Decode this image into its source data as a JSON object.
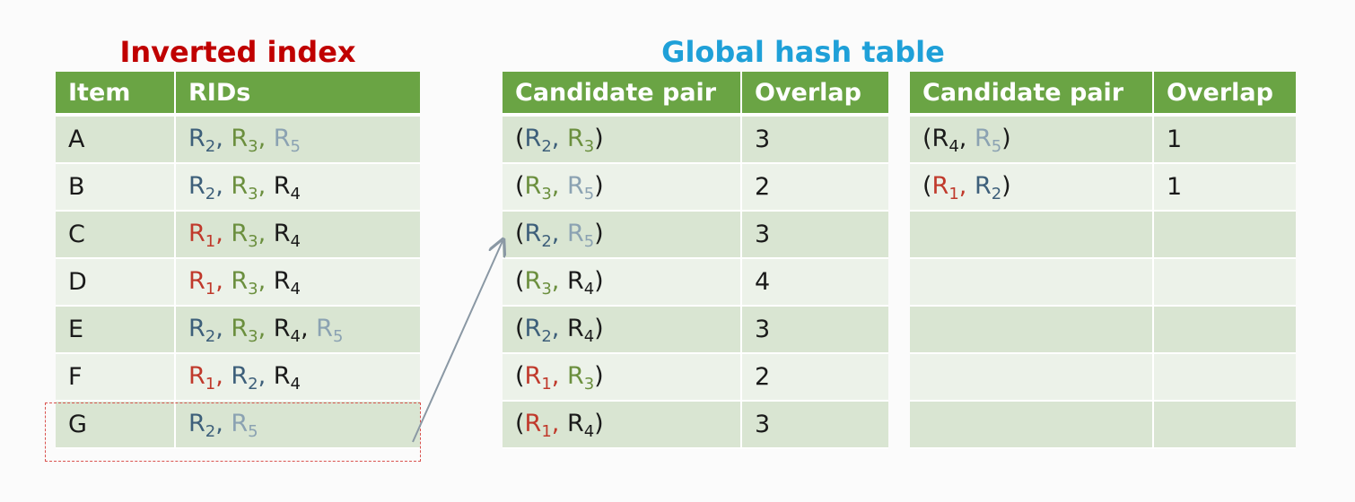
{
  "colors": {
    "header_bg": "#6aa444",
    "row_odd": "#d9e5d2",
    "row_even": "#ecf2e9",
    "R1": "#c0392b",
    "R2": "#3d5f7a",
    "R3": "#6b8f3e",
    "R4": "#1a1a1a",
    "R5": "#8ba2b2",
    "punct": "#1a1a1a"
  },
  "inverted_index": {
    "title": "Inverted index",
    "headers": [
      "Item",
      "RIDs"
    ],
    "rows": [
      {
        "item": "A",
        "rids": [
          "R2",
          "R3",
          "R5"
        ]
      },
      {
        "item": "B",
        "rids": [
          "R2",
          "R3",
          "R4"
        ]
      },
      {
        "item": "C",
        "rids": [
          "R1",
          "R3",
          "R4"
        ]
      },
      {
        "item": "D",
        "rids": [
          "R1",
          "R3",
          "R4"
        ]
      },
      {
        "item": "E",
        "rids": [
          "R2",
          "R3",
          "R4",
          "R5"
        ]
      },
      {
        "item": "F",
        "rids": [
          "R1",
          "R2",
          "R4"
        ]
      },
      {
        "item": "G",
        "rids": [
          "R2",
          "R5"
        ]
      }
    ],
    "highlighted_item": "G"
  },
  "global_hash_table": {
    "title": "Global hash table",
    "headers": [
      "Candidate pair",
      "Overlap"
    ],
    "left_rows": [
      {
        "pair": [
          "R2",
          "R3"
        ],
        "overlap": "3"
      },
      {
        "pair": [
          "R3",
          "R5"
        ],
        "overlap": "2"
      },
      {
        "pair": [
          "R2",
          "R5"
        ],
        "overlap": "3"
      },
      {
        "pair": [
          "R3",
          "R4"
        ],
        "overlap": "4"
      },
      {
        "pair": [
          "R2",
          "R4"
        ],
        "overlap": "3"
      },
      {
        "pair": [
          "R1",
          "R3"
        ],
        "overlap": "2"
      },
      {
        "pair": [
          "R1",
          "R4"
        ],
        "overlap": "3"
      }
    ],
    "right_rows": [
      {
        "pair": [
          "R4",
          "R5"
        ],
        "overlap": "1"
      },
      {
        "pair": [
          "R1",
          "R2"
        ],
        "overlap": "1"
      },
      {
        "pair": [],
        "overlap": ""
      },
      {
        "pair": [],
        "overlap": ""
      },
      {
        "pair": [],
        "overlap": ""
      },
      {
        "pair": [],
        "overlap": ""
      },
      {
        "pair": [],
        "overlap": ""
      }
    ]
  }
}
